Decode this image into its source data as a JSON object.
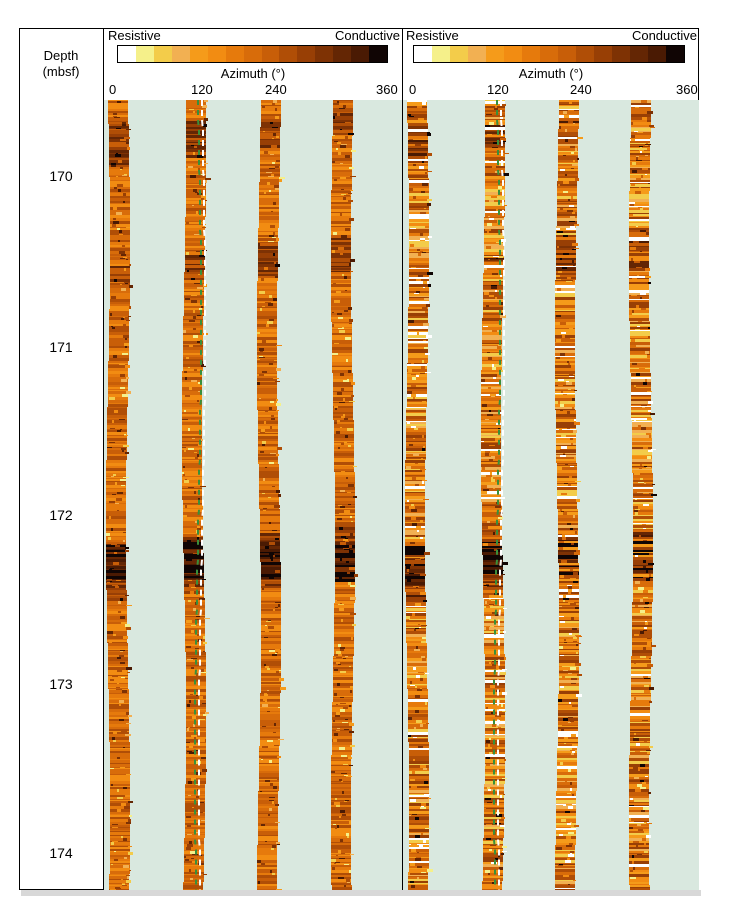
{
  "depth_track": {
    "title_line1": "Depth",
    "title_line2": "(mbsf)",
    "labels": [
      "170",
      "171",
      "172",
      "173",
      "174"
    ]
  },
  "panels": [
    {
      "legend_left": "Resistive",
      "legend_right": "Conductive",
      "axis_title": "Azimuth (°)",
      "ticks": [
        "0",
        "120",
        "240",
        "360"
      ],
      "image_style": "static"
    },
    {
      "legend_left": "Resistive",
      "legend_right": "Conductive",
      "axis_title": "Azimuth (°)",
      "ticks": [
        "0",
        "120",
        "240",
        "360"
      ],
      "image_style": "dynamic"
    }
  ],
  "colors": {
    "background_gap": "#d9e8df",
    "colorbar": [
      "#ffffff",
      "#f5f08a",
      "#f3cc4a",
      "#f2b052",
      "#f59b1a",
      "#f28c12",
      "#e67a0c",
      "#d86c0a",
      "#c85e08",
      "#b04e06",
      "#983f05",
      "#7e3204",
      "#642604",
      "#4a1a03",
      "#100504"
    ],
    "trace_green": "#3a8f3a",
    "trace_white": "#ffffff"
  }
}
